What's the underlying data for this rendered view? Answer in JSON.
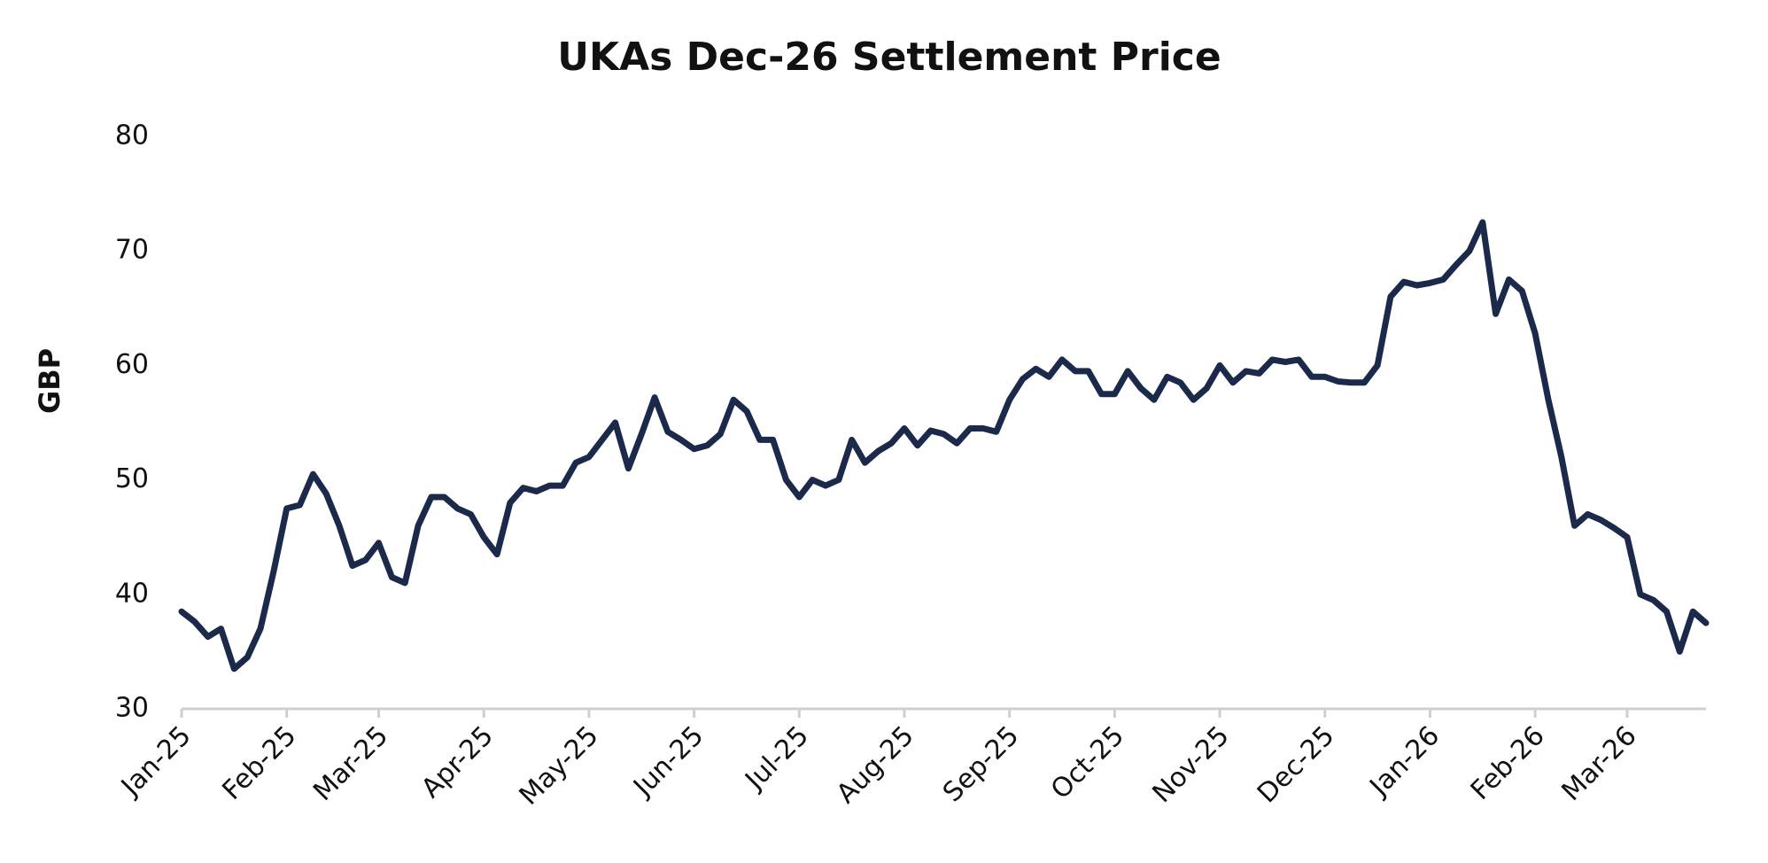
{
  "chart_data": {
    "type": "line",
    "title": "UKAs Dec-26 Settlement Price",
    "y_label": "GBP",
    "categories": [
      "Jan-25",
      null,
      null,
      null,
      null,
      null,
      null,
      null,
      "Feb-25",
      null,
      null,
      null,
      null,
      null,
      null,
      "Mar-25",
      null,
      null,
      null,
      null,
      null,
      null,
      null,
      "Apr-25",
      null,
      null,
      null,
      null,
      null,
      null,
      null,
      "May-25",
      null,
      null,
      null,
      null,
      null,
      null,
      null,
      "Jun-25",
      null,
      null,
      null,
      null,
      null,
      null,
      null,
      "Jul-25",
      null,
      null,
      null,
      null,
      null,
      null,
      null,
      "Aug-25",
      null,
      null,
      null,
      null,
      null,
      null,
      null,
      "Sep-25",
      null,
      null,
      null,
      null,
      null,
      null,
      null,
      "Oct-25",
      null,
      null,
      null,
      null,
      null,
      null,
      null,
      "Nov-25",
      null,
      null,
      null,
      null,
      null,
      null,
      null,
      "Dec-25",
      null,
      null,
      null,
      null,
      null,
      null,
      null,
      "Jan-26",
      null,
      null,
      null,
      null,
      null,
      null,
      null,
      "Feb-26",
      null,
      null,
      null,
      null,
      null,
      null,
      "Mar-26",
      null,
      null,
      null,
      null,
      null,
      null
    ],
    "values": [
      38.5,
      37.6,
      36.3,
      37,
      33.5,
      34.5,
      37,
      42,
      47.5,
      47.8,
      50.5,
      48.8,
      46,
      42.5,
      43,
      44.5,
      41.5,
      41,
      46,
      48.5,
      48.5,
      47.5,
      47,
      45,
      43.5,
      48,
      49.3,
      49,
      49.5,
      49.5,
      51.5,
      52,
      53.5,
      55,
      51,
      54,
      57.2,
      54.2,
      53.5,
      52.7,
      53,
      54,
      57,
      56,
      53.5,
      53.5,
      50,
      48.5,
      50,
      49.5,
      50,
      53.5,
      51.5,
      52.5,
      53.2,
      54.5,
      53,
      54.3,
      54,
      53.2,
      54.5,
      54.5,
      54.2,
      57,
      58.8,
      59.7,
      59,
      60.5,
      59.5,
      59.5,
      57.5,
      57.5,
      59.5,
      58,
      57,
      59,
      58.5,
      57,
      58,
      60,
      58.5,
      59.5,
      59.3,
      60.5,
      60.3,
      60.5,
      59,
      59,
      58.6,
      58.5,
      58.5,
      60,
      66,
      67.3,
      67,
      67.2,
      67.5,
      68.8,
      70,
      72.5,
      64.5,
      67.5,
      66.5,
      62.8,
      57,
      52,
      46,
      47,
      46.5,
      45.8,
      45,
      40,
      39.5,
      38.5,
      35,
      38.5,
      37.5
    ],
    "color": "#1b2a4a",
    "ylim": [
      30,
      80
    ],
    "yticks": [
      30,
      40,
      50,
      60,
      70,
      80
    ],
    "grid": false
  }
}
